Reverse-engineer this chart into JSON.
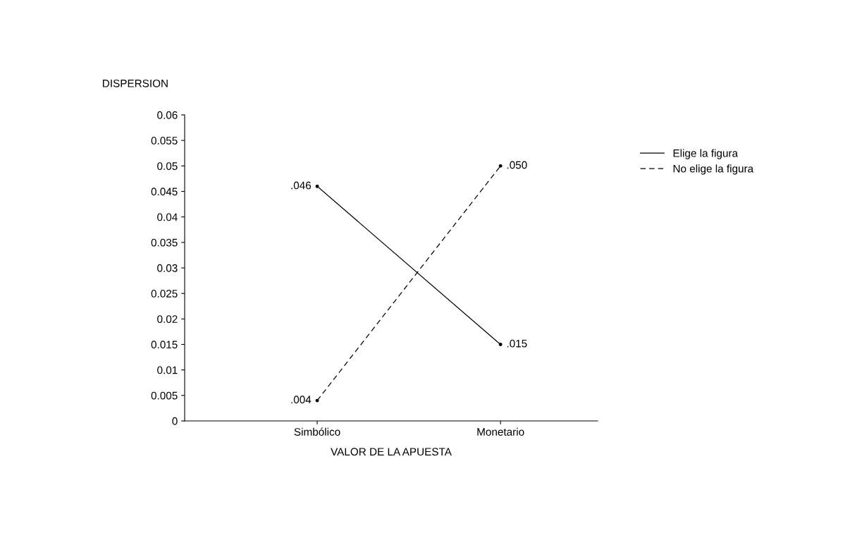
{
  "chart_data": {
    "type": "line",
    "categories": [
      "Simbólico",
      "Monetario"
    ],
    "series": [
      {
        "name": "Elige la figura",
        "color": "#000000",
        "line_style": "solid",
        "values": [
          0.046,
          0.015
        ],
        "value_labels": [
          ".046",
          ".015"
        ]
      },
      {
        "name": "No elige la figura",
        "color": "#000000",
        "line_style": "dashed",
        "values": [
          0.004,
          0.05
        ],
        "value_labels": [
          ".004",
          ".050"
        ]
      }
    ],
    "ylabel": "DISPERSION",
    "xlabel": "VALOR DE LA APUESTA",
    "ylim": [
      0,
      0.06
    ],
    "yticks": [
      0,
      0.005,
      0.01,
      0.015,
      0.02,
      0.025,
      0.03,
      0.035,
      0.04,
      0.045,
      0.05,
      0.055,
      0.06
    ],
    "grid": false,
    "legend": "right",
    "marker": "circle"
  }
}
